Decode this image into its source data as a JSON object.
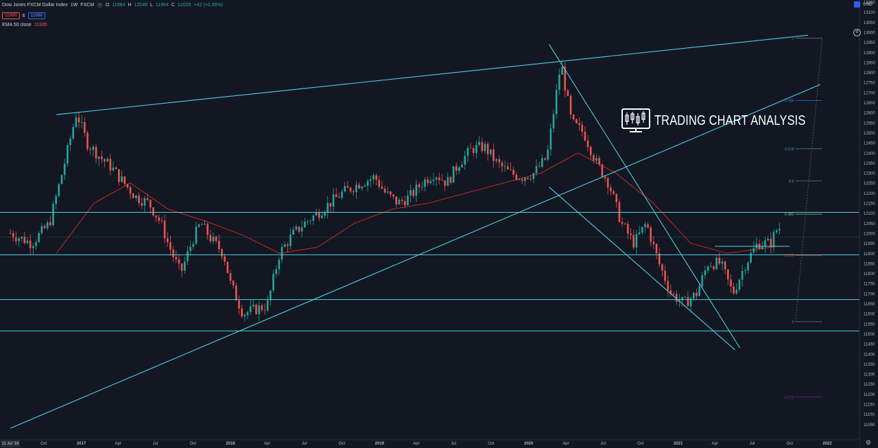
{
  "header": {
    "symbol": "Dow Jones FXCM Dollar Index",
    "interval": "1W",
    "exchange": "FXCM",
    "open_label": "O",
    "open": "11984",
    "high_label": "H",
    "high": "12046",
    "low_label": "L",
    "low": "11964",
    "close_label": "C",
    "close": "12026",
    "change": "+42 (+0.35%)",
    "sell_price": "11980",
    "spread": "6",
    "buy_price": "11986",
    "ema_label": "EMA 50 close",
    "ema_value": "11935",
    "currency": "USD"
  },
  "watermark": {
    "text": "TRADING CHART ANALYSIS"
  },
  "colors": {
    "background": "#131722",
    "up": "#26a69a",
    "down": "#ef5350",
    "trendline": "#4dd0e1",
    "ema": "#c62828",
    "axis_text": "#b2b5be"
  },
  "chart_data": {
    "type": "candlestick",
    "title": "Dow Jones FXCM Dollar Index, 1W, FXCM",
    "ylim": [
      11000,
      13150
    ],
    "y_ticks": [
      11050,
      11100,
      11150,
      11200,
      11250,
      11300,
      11350,
      11400,
      11450,
      11500,
      11550,
      11600,
      11650,
      11700,
      11750,
      11800,
      11850,
      11900,
      11950,
      12000,
      12050,
      12100,
      12150,
      12200,
      12250,
      12300,
      12350,
      12400,
      12450,
      12500,
      12550,
      12600,
      12650,
      12700,
      12750,
      12800,
      12850,
      12900,
      12950,
      13000,
      13050,
      13100,
      13150
    ],
    "x_ticks": [
      {
        "label": "11 Jul '16",
        "date": "2016-07-11"
      },
      {
        "label": "Oct",
        "date": "2016-10-01"
      },
      {
        "label": "2017",
        "date": "2017-01-01"
      },
      {
        "label": "Apr",
        "date": "2017-04-01"
      },
      {
        "label": "Jul",
        "date": "2017-07-01"
      },
      {
        "label": "Oct",
        "date": "2017-10-01"
      },
      {
        "label": "2018",
        "date": "2018-01-01"
      },
      {
        "label": "Apr",
        "date": "2018-04-01"
      },
      {
        "label": "Jul",
        "date": "2018-07-01"
      },
      {
        "label": "Oct",
        "date": "2018-10-01"
      },
      {
        "label": "2019",
        "date": "2019-01-01"
      },
      {
        "label": "Apr",
        "date": "2019-04-01"
      },
      {
        "label": "Jul",
        "date": "2019-07-01"
      },
      {
        "label": "Oct",
        "date": "2019-10-01"
      },
      {
        "label": "2020",
        "date": "2020-01-01"
      },
      {
        "label": "Apr",
        "date": "2020-04-01"
      },
      {
        "label": "Jul",
        "date": "2020-07-01"
      },
      {
        "label": "Oct",
        "date": "2020-10-01"
      },
      {
        "label": "2021",
        "date": "2021-01-01"
      },
      {
        "label": "Apr",
        "date": "2021-04-01"
      },
      {
        "label": "Jul",
        "date": "2021-07-01"
      },
      {
        "label": "Oct",
        "date": "2021-10-01"
      },
      {
        "label": "2022",
        "date": "2022-01-01"
      }
    ],
    "series": [
      {
        "date": "2016-07-01",
        "close": 12010
      },
      {
        "date": "2016-09-01",
        "close": 11950
      },
      {
        "date": "2016-10-15",
        "close": 12050
      },
      {
        "date": "2016-11-15",
        "close": 12300
      },
      {
        "date": "2016-12-20",
        "close": 12600
      },
      {
        "date": "2017-01-15",
        "close": 12450
      },
      {
        "date": "2017-02-15",
        "close": 12380
      },
      {
        "date": "2017-03-15",
        "close": 12330
      },
      {
        "date": "2017-04-15",
        "close": 12250
      },
      {
        "date": "2017-05-15",
        "close": 12180
      },
      {
        "date": "2017-06-15",
        "close": 12150
      },
      {
        "date": "2017-07-15",
        "close": 12050
      },
      {
        "date": "2017-08-01",
        "close": 11950
      },
      {
        "date": "2017-09-01",
        "close": 11800
      },
      {
        "date": "2017-10-01",
        "close": 11970
      },
      {
        "date": "2017-10-20",
        "close": 12050
      },
      {
        "date": "2017-11-15",
        "close": 11970
      },
      {
        "date": "2017-12-15",
        "close": 11900
      },
      {
        "date": "2018-01-01",
        "close": 11750
      },
      {
        "date": "2018-02-01",
        "close": 11600
      },
      {
        "date": "2018-03-01",
        "close": 11620
      },
      {
        "date": "2018-04-01",
        "close": 11640
      },
      {
        "date": "2018-05-01",
        "close": 11900
      },
      {
        "date": "2018-06-01",
        "close": 11990
      },
      {
        "date": "2018-07-01",
        "close": 12050
      },
      {
        "date": "2018-08-15",
        "close": 12120
      },
      {
        "date": "2018-10-01",
        "close": 12200
      },
      {
        "date": "2018-11-15",
        "close": 12250
      },
      {
        "date": "2018-12-20",
        "close": 12280
      },
      {
        "date": "2019-01-15",
        "close": 12200
      },
      {
        "date": "2019-02-15",
        "close": 12150
      },
      {
        "date": "2019-03-15",
        "close": 12180
      },
      {
        "date": "2019-04-15",
        "close": 12250
      },
      {
        "date": "2019-05-15",
        "close": 12300
      },
      {
        "date": "2019-06-15",
        "close": 12250
      },
      {
        "date": "2019-07-15",
        "close": 12350
      },
      {
        "date": "2019-08-15",
        "close": 12420
      },
      {
        "date": "2019-09-15",
        "close": 12430
      },
      {
        "date": "2019-10-15",
        "close": 12350
      },
      {
        "date": "2019-11-15",
        "close": 12300
      },
      {
        "date": "2019-12-15",
        "close": 12280
      },
      {
        "date": "2020-01-15",
        "close": 12300
      },
      {
        "date": "2020-02-15",
        "close": 12380
      },
      {
        "date": "2020-03-20",
        "close": 12850
      },
      {
        "date": "2020-04-15",
        "close": 12550
      },
      {
        "date": "2020-05-15",
        "close": 12500
      },
      {
        "date": "2020-06-15",
        "close": 12350
      },
      {
        "date": "2020-07-15",
        "close": 12250
      },
      {
        "date": "2020-08-15",
        "close": 12050
      },
      {
        "date": "2020-09-15",
        "close": 11950
      },
      {
        "date": "2020-10-15",
        "close": 12050
      },
      {
        "date": "2020-11-15",
        "close": 11850
      },
      {
        "date": "2020-12-15",
        "close": 11700
      },
      {
        "date": "2021-01-15",
        "close": 11650
      },
      {
        "date": "2021-02-15",
        "close": 11700
      },
      {
        "date": "2021-03-15",
        "close": 11850
      },
      {
        "date": "2021-04-15",
        "close": 11850
      },
      {
        "date": "2021-05-15",
        "close": 11700
      },
      {
        "date": "2021-06-15",
        "close": 11850
      },
      {
        "date": "2021-07-15",
        "close": 11950
      },
      {
        "date": "2021-08-15",
        "close": 11950
      },
      {
        "date": "2021-09-01",
        "close": 12026
      }
    ],
    "ema50": [
      {
        "date": "2016-11-01",
        "value": 11900
      },
      {
        "date": "2017-02-01",
        "value": 12150
      },
      {
        "date": "2017-05-01",
        "value": 12250
      },
      {
        "date": "2017-08-01",
        "value": 12120
      },
      {
        "date": "2017-11-01",
        "value": 12060
      },
      {
        "date": "2018-02-01",
        "value": 11990
      },
      {
        "date": "2018-05-01",
        "value": 11900
      },
      {
        "date": "2018-08-01",
        "value": 11930
      },
      {
        "date": "2018-11-01",
        "value": 12050
      },
      {
        "date": "2019-02-01",
        "value": 12120
      },
      {
        "date": "2019-05-01",
        "value": 12150
      },
      {
        "date": "2019-08-01",
        "value": 12200
      },
      {
        "date": "2019-11-01",
        "value": 12250
      },
      {
        "date": "2020-02-01",
        "value": 12300
      },
      {
        "date": "2020-05-01",
        "value": 12400
      },
      {
        "date": "2020-08-01",
        "value": 12300
      },
      {
        "date": "2020-11-01",
        "value": 12150
      },
      {
        "date": "2021-02-01",
        "value": 11950
      },
      {
        "date": "2021-05-01",
        "value": 11900
      },
      {
        "date": "2021-09-01",
        "value": 11935
      }
    ],
    "horizontal_levels": [
      {
        "price": 12104,
        "label": "12104"
      },
      {
        "price": 11893,
        "label": "11893"
      },
      {
        "price": 11670,
        "label": "11670"
      },
      {
        "price": 11514,
        "label": "11514"
      }
    ],
    "current_price": {
      "price": 11980,
      "label": "11980"
    },
    "crosshair_price": {
      "price": 13009,
      "label": "13009"
    },
    "trendlines": [
      {
        "from": {
          "date": "2016-11-01",
          "price": 12590
        },
        "to": {
          "date": "2021-11-15",
          "price": 12985
        }
      },
      {
        "from": {
          "date": "2016-07-11",
          "price": 11030
        },
        "to": {
          "date": "2021-12-15",
          "price": 12740
        }
      },
      {
        "from": {
          "date": "2020-02-20",
          "price": 12940
        },
        "to": {
          "date": "2021-06-01",
          "price": 11430
        }
      },
      {
        "from": {
          "date": "2020-02-20",
          "price": 12230
        },
        "to": {
          "date": "2021-05-20",
          "price": 11420
        }
      }
    ],
    "fibonacci": [
      {
        "level": "1",
        "price": 12970
      },
      {
        "level": "0.786",
        "price": 12660
      },
      {
        "level": "0.618",
        "price": 12420
      },
      {
        "level": "0.5",
        "price": 12260
      },
      {
        "level": "0.382",
        "price": 12095
      },
      {
        "level": "0.236",
        "price": 11890
      },
      {
        "level": "0",
        "price": 11560
      },
      {
        "level": "-0.272",
        "price": 11185
      }
    ],
    "fib_x": {
      "from": "2021-10-15",
      "to": "2021-12-20"
    },
    "ylabel": "USD",
    "grid": false,
    "legend": "top-left"
  }
}
